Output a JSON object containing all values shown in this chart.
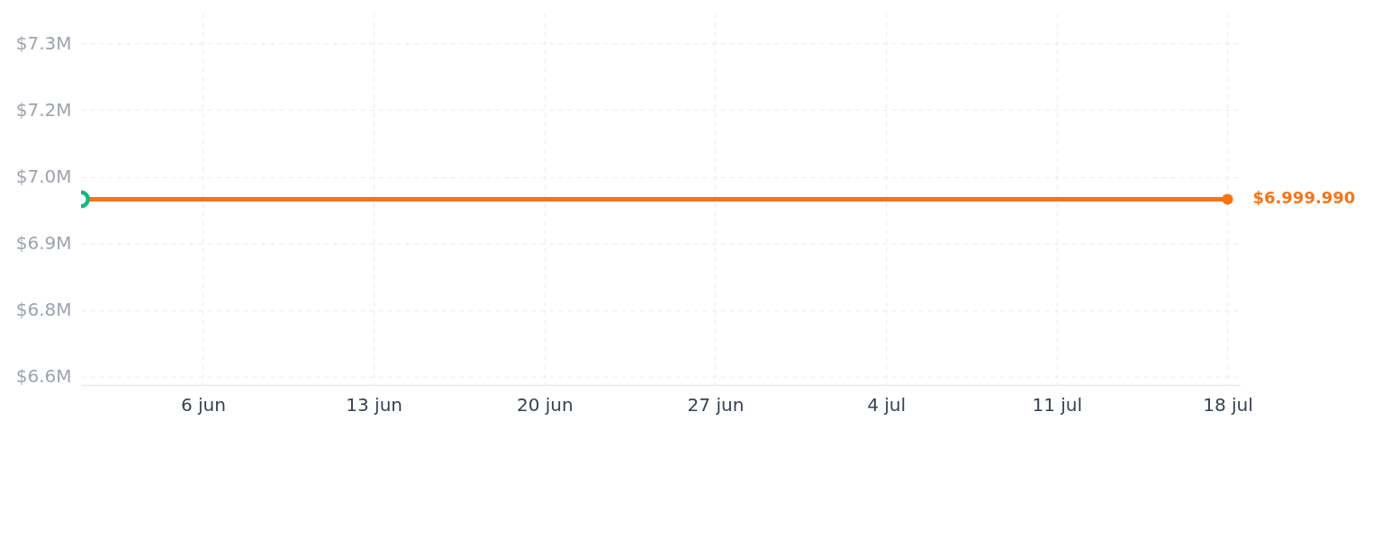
{
  "chart_data": {
    "type": "line",
    "xlim": [
      "--06-01",
      "--07-18T12:00"
    ],
    "xticks": [
      {
        "value": "--06-06",
        "label": "6 jun"
      },
      {
        "value": "--06-13",
        "label": "13 jun"
      },
      {
        "value": "--06-20",
        "label": "20 jun"
      },
      {
        "value": "--06-27",
        "label": "27 jun"
      },
      {
        "value": "--07-04",
        "label": "4 jul"
      },
      {
        "value": "--07-11",
        "label": "11 jul"
      },
      {
        "value": "--07-18",
        "label": "18 jul"
      }
    ],
    "ylim": [
      6610000,
      7390000
    ],
    "yticks": [
      {
        "value": 6627000,
        "label": "$6.6M"
      },
      {
        "value": 6767000,
        "label": "$6.8M"
      },
      {
        "value": 6907000,
        "label": "$6.9M"
      },
      {
        "value": 7047000,
        "label": "$7.0M"
      },
      {
        "value": 7187000,
        "label": "$7.2M"
      },
      {
        "value": 7327000,
        "label": "$7.3M"
      }
    ],
    "grid": true,
    "line_style": "solid",
    "marker": "circle",
    "series": [
      {
        "color": "#f97316",
        "x": [
          "--06-01",
          "--07-18"
        ],
        "values": [
          6999990,
          6999990
        ],
        "value_labels": [
          null,
          "$6.999.990"
        ]
      },
      {
        "type": "scatter",
        "color": "#10b981",
        "x": [
          "--06-01"
        ],
        "values": [
          6999990
        ]
      }
    ]
  }
}
